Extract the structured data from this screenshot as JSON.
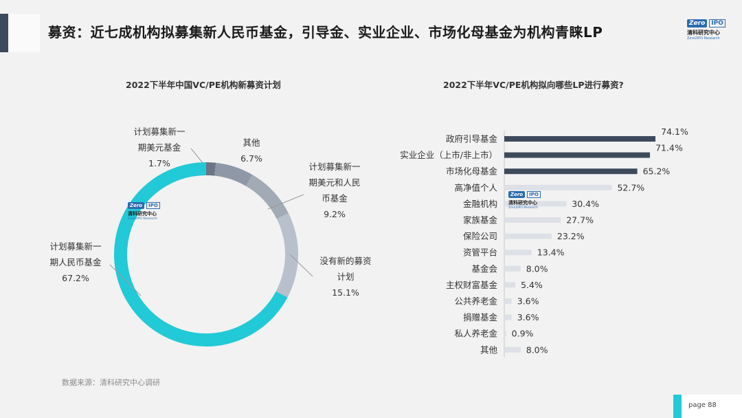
{
  "header": {
    "title": "募资：近七成机构拟募集新人民币基金，引导金、实业企业、市场化母基金为机构青睐LP"
  },
  "logo": {
    "mark_left": "Zero",
    "mark_right": "IPO",
    "name_cn": "清科研究中心",
    "name_en": "Zero2IPO Research"
  },
  "colors": {
    "teal": "#22c9d6",
    "navy": "#3d4a5c",
    "gray_dark": "#6b7585",
    "gray_mid": "#9aa3b0",
    "gray_light": "#b8c0cb",
    "bar_light": "#dde0e6"
  },
  "chart_data": [
    {
      "type": "pie",
      "title": "2022下半年中国VC/PE机构新募资计划",
      "slices": [
        {
          "label_lines": [
            "计划募集新一",
            "期美元基金"
          ],
          "value": 1.7,
          "value_label": "1.7%",
          "color": "#6b7585"
        },
        {
          "label_lines": [
            "其他"
          ],
          "value": 6.7,
          "value_label": "6.7%",
          "color": "#8f98a6"
        },
        {
          "label_lines": [
            "计划募集新一",
            "期美元和人民",
            "币基金"
          ],
          "value": 9.2,
          "value_label": "9.2%",
          "color": "#a2aab6"
        },
        {
          "label_lines": [
            "没有新的募资",
            "计划"
          ],
          "value": 15.1,
          "value_label": "15.1%",
          "color": "#b8c0cb"
        },
        {
          "label_lines": [
            "计划募集新一",
            "期人民币基金"
          ],
          "value": 67.2,
          "value_label": "67.2%",
          "color": "#22c9d6"
        }
      ]
    },
    {
      "type": "bar",
      "orientation": "horizontal",
      "title": "2022下半年VC/PE机构拟向哪些LP进行募资?",
      "categories": [
        "政府引导基金",
        "实业企业（上市/非上市）",
        "市场化母基金",
        "高净值个人",
        "金融机构",
        "家族基金",
        "保险公司",
        "资管平台",
        "基金会",
        "主权财富基金",
        "公共养老金",
        "捐赠基金",
        "私人养老金",
        "其他"
      ],
      "values": [
        74.1,
        71.4,
        65.2,
        52.7,
        30.4,
        27.7,
        23.2,
        13.4,
        8.0,
        5.4,
        3.6,
        3.6,
        0.9,
        8.0
      ],
      "value_labels": [
        "74.1%",
        "71.4%",
        "65.2%",
        "52.7%",
        "30.4%",
        "27.7%",
        "23.2%",
        "13.4%",
        "8.0%",
        "5.4%",
        "3.6%",
        "3.6%",
        "0.9%",
        "8.0%"
      ],
      "highlight_count": 3,
      "xlim": [
        0,
        80
      ]
    }
  ],
  "footer": {
    "source": "数据来源：清科研究中心调研",
    "page": "page  88"
  }
}
